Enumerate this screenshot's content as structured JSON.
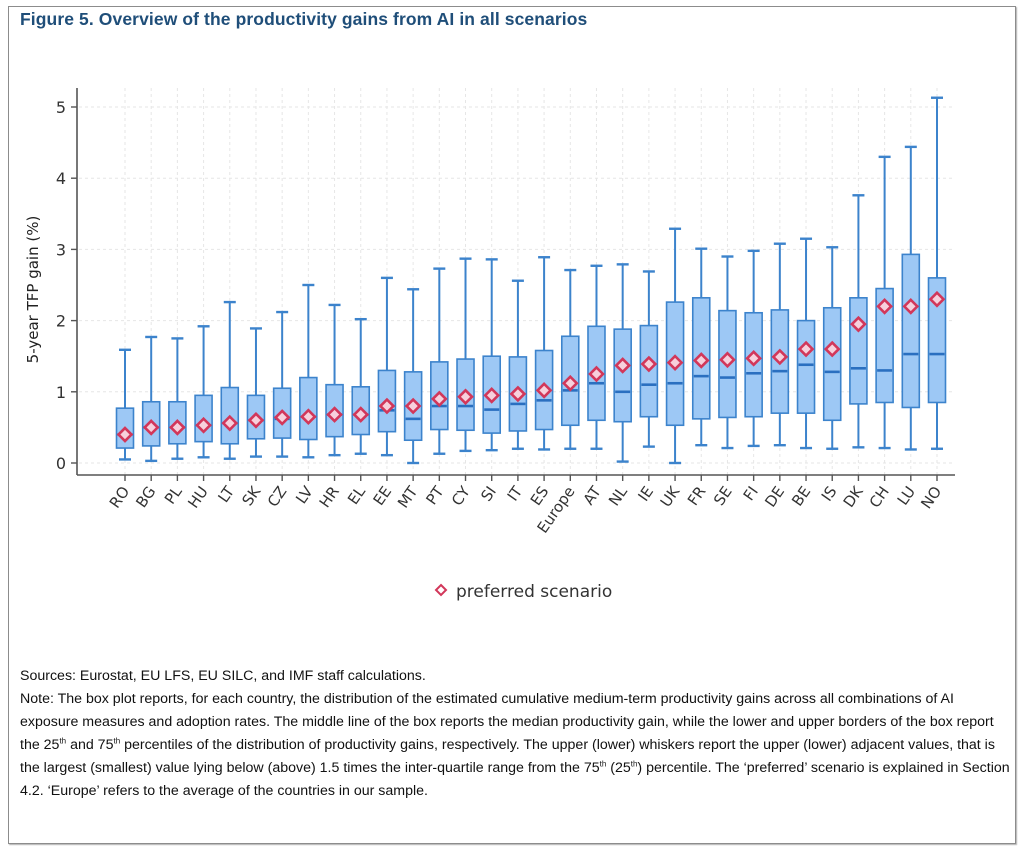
{
  "figure": {
    "title": "Figure 5. Overview of the productivity gains from AI in all scenarios"
  },
  "chart_data": {
    "type": "box",
    "title": "Figure 5. Overview of the productivity gains from AI in all scenarios",
    "xlabel": "",
    "ylabel": "5-year TFP gain (%)",
    "ylim": [
      0,
      5.2
    ],
    "yticks": [
      0,
      1,
      2,
      3,
      4,
      5
    ],
    "grid": true,
    "legend": {
      "position": "bottom-center",
      "entries": [
        {
          "label": "preferred scenario",
          "marker": "diamond",
          "color": "#d2375a"
        }
      ]
    },
    "colors": {
      "box_fill": "#9dc8f5",
      "box_stroke": "#3c83cc",
      "median": "#2a6fc0",
      "preferred": "#d2375a",
      "axis": "#555555",
      "grid": "#e6e6e6"
    },
    "categories": [
      "RO",
      "BG",
      "PL",
      "HU",
      "LT",
      "SK",
      "CZ",
      "LV",
      "HR",
      "EL",
      "EE",
      "MT",
      "PT",
      "CY",
      "SI",
      "IT",
      "ES",
      "Europe",
      "AT",
      "NL",
      "IE",
      "UK",
      "FR",
      "SE",
      "FI",
      "DE",
      "BE",
      "IS",
      "DK",
      "CH",
      "LU",
      "NO"
    ],
    "series": [
      {
        "name": "lower_whisker",
        "values": [
          0.05,
          0.03,
          0.06,
          0.08,
          0.06,
          0.09,
          0.09,
          0.08,
          0.11,
          0.13,
          0.11,
          0.0,
          0.13,
          0.17,
          0.18,
          0.2,
          0.19,
          0.2,
          0.2,
          0.02,
          0.23,
          0.0,
          0.25,
          0.21,
          0.24,
          0.25,
          0.21,
          0.2,
          0.22,
          0.21,
          0.19,
          0.2
        ]
      },
      {
        "name": "q1",
        "values": [
          0.21,
          0.24,
          0.27,
          0.3,
          0.27,
          0.34,
          0.35,
          0.33,
          0.37,
          0.4,
          0.44,
          0.32,
          0.47,
          0.46,
          0.42,
          0.45,
          0.47,
          0.53,
          0.6,
          0.58,
          0.65,
          0.53,
          0.62,
          0.64,
          0.65,
          0.7,
          0.7,
          0.6,
          0.83,
          0.85,
          0.78,
          0.85
        ]
      },
      {
        "name": "median",
        "values": [
          0.4,
          0.5,
          0.5,
          0.53,
          0.56,
          0.6,
          0.62,
          0.65,
          0.68,
          0.68,
          0.74,
          0.62,
          0.8,
          0.8,
          0.75,
          0.83,
          0.88,
          1.02,
          1.12,
          1.0,
          1.1,
          1.12,
          1.22,
          1.2,
          1.26,
          1.29,
          1.38,
          1.28,
          1.33,
          1.3,
          1.53,
          1.53
        ]
      },
      {
        "name": "q3",
        "values": [
          0.77,
          0.86,
          0.86,
          0.95,
          1.06,
          0.95,
          1.05,
          1.2,
          1.1,
          1.07,
          1.3,
          1.28,
          1.42,
          1.46,
          1.5,
          1.49,
          1.58,
          1.78,
          1.92,
          1.88,
          1.93,
          2.26,
          2.32,
          2.14,
          2.11,
          2.15,
          2.0,
          2.18,
          2.32,
          2.45,
          2.93,
          2.6
        ]
      },
      {
        "name": "upper_whisker",
        "values": [
          1.59,
          1.77,
          1.75,
          1.92,
          2.26,
          1.89,
          2.12,
          2.5,
          2.22,
          2.02,
          2.6,
          2.44,
          2.73,
          2.87,
          2.86,
          2.56,
          2.89,
          2.71,
          2.77,
          2.79,
          2.69,
          3.29,
          3.01,
          2.9,
          2.98,
          3.08,
          3.15,
          3.03,
          3.76,
          4.3,
          4.44,
          5.13
        ]
      },
      {
        "name": "preferred scenario",
        "values": [
          0.4,
          0.5,
          0.5,
          0.53,
          0.56,
          0.6,
          0.64,
          0.65,
          0.68,
          0.68,
          0.8,
          0.8,
          0.9,
          0.93,
          0.95,
          0.97,
          1.02,
          1.12,
          1.25,
          1.37,
          1.39,
          1.41,
          1.44,
          1.45,
          1.47,
          1.49,
          1.6,
          1.6,
          1.95,
          2.2,
          2.2,
          2.3
        ]
      }
    ]
  },
  "notes": {
    "sources": "Sources: Eurostat, EU LFS, EU SILC, and IMF staff calculations.",
    "note_part1": "Note: The box plot reports, for each country, the distribution of the estimated cumulative medium-term productivity gains across all combinations of AI exposure measures and adoption rates. The middle line of the box reports the median productivity gain, while the lower and upper borders of the box report the 25",
    "sup_th": "th",
    "note_part2": " and 75",
    "note_part3": " percentiles of the distribution of productivity gains, respectively. The upper (lower) whiskers report the upper (lower) adjacent values, that is the largest (smallest) value lying below (above) 1.5 times the inter-quartile range from the 75",
    "note_part4": " (25",
    "note_part5": ") percentile. The ‘preferred’ scenario is explained in Section 4.2. ‘Europe’ refers to the average of the countries in our sample."
  }
}
